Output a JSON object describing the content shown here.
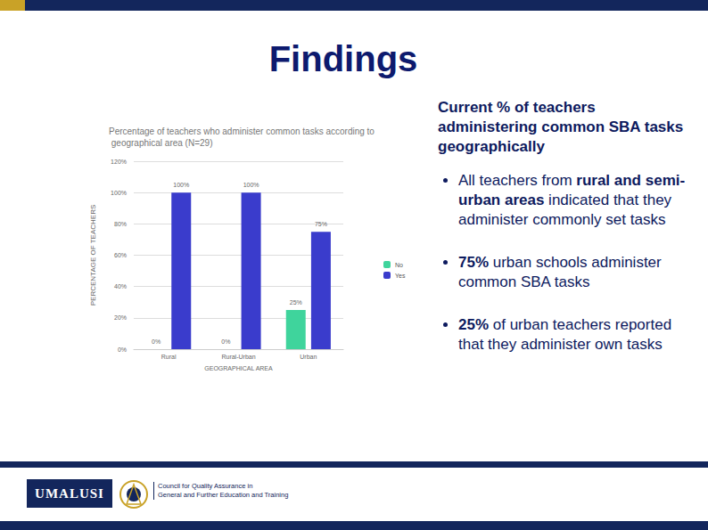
{
  "chart_data": {
    "type": "bar",
    "title": "Percentage of teachers who administer common tasks according to geographical area (N=29)",
    "x_label": "GEOGRAPHICAL AREA",
    "y_label": "PERCENTAGE OF TEACHERS",
    "categories": [
      "Rural",
      "Rural-Urban",
      "Urban"
    ],
    "series": [
      {
        "name": "No",
        "color": "#3fd49c",
        "values": [
          0,
          0,
          25
        ],
        "value_labels": [
          "0%",
          "0%",
          "25%"
        ]
      },
      {
        "name": "Yes",
        "color": "#3a3ccc",
        "values": [
          100,
          100,
          75
        ],
        "value_labels": [
          "100%",
          "100%",
          "75%"
        ]
      }
    ],
    "ylim": [
      0,
      120
    ],
    "yticks": [
      {
        "value": 0,
        "label": "0%"
      },
      {
        "value": 20,
        "label": "20%"
      },
      {
        "value": 40,
        "label": "40%"
      },
      {
        "value": 60,
        "label": "60%"
      },
      {
        "value": 80,
        "label": "80%"
      },
      {
        "value": 100,
        "label": "100%"
      },
      {
        "value": 120,
        "label": "120%"
      }
    ],
    "grid": true,
    "legend": "right",
    "data_labels": true
  },
  "slide": {
    "heading": "Findings",
    "intro": "Current %  of teachers administering common SBA tasks geographically",
    "bullets": [
      [
        {
          "text": "All teachers from "
        },
        {
          "text": "rural and semi-urban areas",
          "bold": true
        },
        {
          "text": " indicated that they administer commonly set tasks"
        }
      ],
      [
        {
          "text": "75%",
          "bold": true
        },
        {
          "text": " urban schools administer common SBA tasks"
        }
      ],
      [
        {
          "text": "25%",
          "bold": true
        },
        {
          "text": " of urban teachers reported that they administer own tasks"
        }
      ]
    ],
    "logo": "UMALUSI",
    "footer": [
      "Council for Quality Assurance in",
      "General and Further Education and Training"
    ]
  }
}
